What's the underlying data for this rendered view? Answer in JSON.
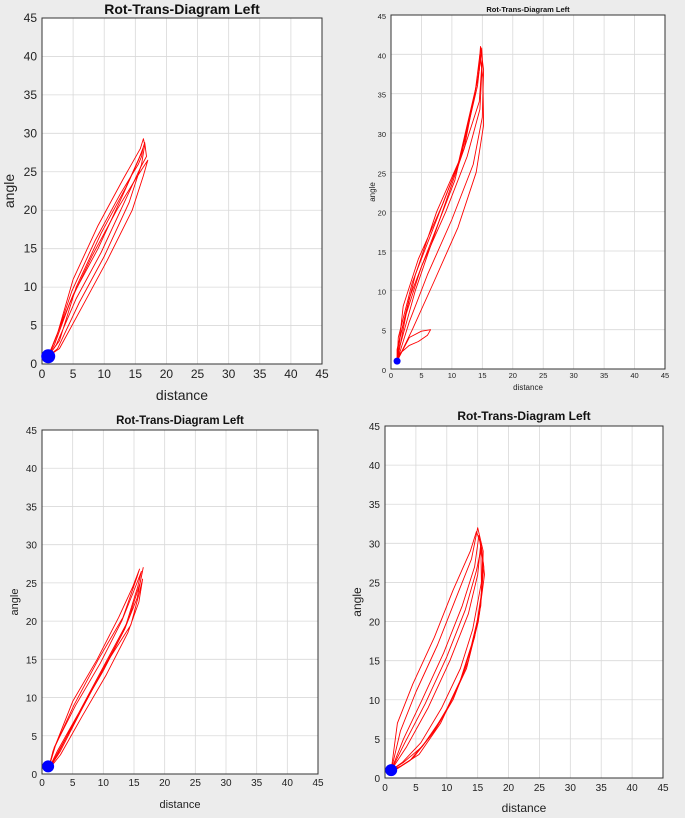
{
  "chart_data": [
    {
      "type": "line",
      "title": "Rot-Trans-Diagram Left",
      "xlabel": "distance",
      "ylabel": "angle",
      "xlim": [
        0,
        45
      ],
      "ylim": [
        0,
        45
      ],
      "xticks": [
        0,
        5,
        10,
        15,
        20,
        25,
        30,
        35,
        40,
        45
      ],
      "yticks": [
        0,
        5,
        10,
        15,
        20,
        25,
        30,
        35,
        40,
        45
      ],
      "grid": true,
      "series": [
        {
          "color": "#ff0000",
          "loops": [
            {
              "x": [
                1,
                2.5,
                6,
                10,
                14,
                16,
                16.5,
                16.3,
                15.8,
                13,
                9,
                5,
                2.5,
                1
              ],
              "y": [
                1,
                2,
                8,
                14,
                21,
                26,
                28.5,
                29.3,
                28,
                24,
                18,
                11,
                4,
                1
              ]
            },
            {
              "x": [
                1,
                2.3,
                5.5,
                9.5,
                13.5,
                15.8,
                16.8,
                16.5,
                16,
                13.5,
                9.5,
                5.5,
                2.8,
                1
              ],
              "y": [
                1,
                2.5,
                8.5,
                14.5,
                21.5,
                25.5,
                27,
                28.8,
                27.5,
                23,
                17,
                10,
                3,
                1
              ]
            },
            {
              "x": [
                1,
                2.8,
                6.5,
                10.5,
                14.5,
                16.3,
                17,
                16.2,
                15,
                12,
                8,
                4.5,
                2,
                1
              ],
              "y": [
                1,
                2,
                7.5,
                13.5,
                20,
                24.5,
                26.5,
                25.5,
                24,
                20,
                14,
                8,
                2.5,
                1
              ]
            },
            {
              "x": [
                1,
                2,
                5,
                9,
                13,
                15.5,
                16.2,
                16,
                15.5,
                12.5,
                8.5,
                4.8,
                2.3,
                1
              ],
              "y": [
                1,
                3,
                9,
                15,
                22,
                26.5,
                28,
                27,
                26,
                22,
                16,
                9.5,
                3.5,
                1
              ]
            }
          ]
        }
      ],
      "marker": {
        "x": 1,
        "y": 1,
        "color": "#0000ff"
      }
    },
    {
      "type": "line",
      "title": "Rot-Trans-Diagram Left",
      "xlabel": "distance",
      "ylabel": "angle",
      "xlim": [
        0,
        45
      ],
      "ylim": [
        0,
        45
      ],
      "xticks": [
        0,
        5,
        10,
        15,
        20,
        25,
        30,
        35,
        40,
        45
      ],
      "yticks": [
        0,
        5,
        10,
        15,
        20,
        25,
        30,
        35,
        40,
        45
      ],
      "grid": true,
      "series": [
        {
          "color": "#ff0000",
          "loops": [
            {
              "x": [
                1,
                3,
                6,
                10,
                13.5,
                15,
                15.2,
                14.8,
                14.5,
                12,
                8,
                4,
                1.5,
                1
              ],
              "y": [
                1,
                6,
                12,
                19,
                26,
                32,
                38,
                40.5,
                38,
                28,
                19,
                10,
                3,
                1
              ]
            },
            {
              "x": [
                1,
                2.5,
                5,
                9,
                12.5,
                14.6,
                15,
                14.7,
                14.3,
                11,
                7,
                3.5,
                1.2,
                1
              ],
              "y": [
                1,
                7,
                13,
                20,
                27,
                33,
                39,
                41,
                37,
                26,
                18,
                11,
                4,
                1
              ]
            },
            {
              "x": [
                1,
                3.5,
                7,
                11,
                14,
                15.2,
                15.1,
                14.6,
                13.8,
                10.5,
                6.5,
                3,
                1,
                1
              ],
              "y": [
                1,
                5,
                11,
                18,
                25,
                31,
                37,
                40,
                35,
                24,
                16,
                9,
                2.5,
                1
              ]
            },
            {
              "x": [
                1,
                2,
                4.5,
                8.5,
                12,
                14.5,
                15,
                14.9,
                14.2,
                11.5,
                7.5,
                4,
                1.5,
                1
              ],
              "y": [
                1,
                8,
                14,
                21,
                28,
                34,
                39.5,
                40.8,
                36,
                27,
                20,
                12,
                4,
                1
              ]
            },
            {
              "x": [
                1,
                3,
                5,
                6.5,
                6,
                4.5,
                3,
                1.5,
                1
              ],
              "y": [
                1,
                4,
                4.8,
                5,
                4.3,
                3.5,
                3,
                2,
                1
              ]
            }
          ]
        }
      ],
      "marker": {
        "x": 1,
        "y": 1,
        "color": "#0000ff"
      }
    },
    {
      "type": "line",
      "title": "Rot-Trans-Diagram Left",
      "xlabel": "distance",
      "ylabel": "angle",
      "xlim": [
        0,
        45
      ],
      "ylim": [
        0,
        45
      ],
      "xticks": [
        0,
        5,
        10,
        15,
        20,
        25,
        30,
        35,
        40,
        45
      ],
      "yticks": [
        0,
        5,
        10,
        15,
        20,
        25,
        30,
        35,
        40,
        45
      ],
      "grid": true,
      "series": [
        {
          "color": "#ff0000",
          "loops": [
            {
              "x": [
                1,
                2.5,
                6,
                10,
                13.5,
                15.5,
                16.5,
                16,
                14,
                10,
                6,
                2.5,
                1
              ],
              "y": [
                0.5,
                3,
                8,
                13.5,
                19,
                23,
                27,
                25,
                20,
                14,
                8,
                2.5,
                0.5
              ]
            },
            {
              "x": [
                1,
                2,
                5.5,
                9.5,
                13,
                15,
                16.2,
                15.6,
                13.5,
                9.5,
                5.5,
                2,
                1
              ],
              "y": [
                0.5,
                3.5,
                9,
                14.5,
                20,
                24,
                26.5,
                24.5,
                19,
                13,
                7,
                2,
                0.5
              ]
            },
            {
              "x": [
                1,
                3,
                6.5,
                10.5,
                14,
                15.8,
                16.4,
                15.8,
                14.5,
                10.5,
                6.5,
                3,
                1
              ],
              "y": [
                0.5,
                2.5,
                7.5,
                13,
                18.5,
                22.5,
                25.5,
                23.5,
                19.5,
                14.5,
                8.5,
                3,
                0.5
              ]
            },
            {
              "x": [
                1,
                2.3,
                5,
                9,
                12.5,
                14.8,
                15.9,
                15.5,
                13.2,
                9.2,
                5.2,
                1.8,
                1
              ],
              "y": [
                0.5,
                4,
                9.5,
                15,
                20.5,
                24.5,
                26.8,
                25.8,
                20.5,
                15,
                9,
                3,
                0.5
              ]
            }
          ]
        }
      ],
      "marker": {
        "x": 1,
        "y": 1,
        "color": "#0000ff"
      }
    },
    {
      "type": "line",
      "title": "Rot-Trans-Diagram Left",
      "xlabel": "distance",
      "ylabel": "angle",
      "xlim": [
        0,
        45
      ],
      "ylim": [
        0,
        45
      ],
      "xticks": [
        0,
        5,
        10,
        15,
        20,
        25,
        30,
        35,
        40,
        45
      ],
      "yticks": [
        0,
        5,
        10,
        15,
        20,
        25,
        30,
        35,
        40,
        45
      ],
      "grid": true,
      "series": [
        {
          "color": "#ff0000",
          "loops": [
            {
              "x": [
                1,
                3,
                6,
                9.5,
                12.5,
                14.5,
                15.2,
                15.8,
                15.5,
                14,
                12,
                9,
                5.5,
                2.5,
                1
              ],
              "y": [
                1,
                5,
                10,
                16,
                22,
                27,
                31,
                28,
                22,
                17,
                12,
                7,
                3,
                1.5,
                1
              ]
            },
            {
              "x": [
                1,
                2.5,
                5,
                8.5,
                11.5,
                14,
                15,
                15.9,
                15.7,
                14.5,
                12.5,
                9.5,
                6,
                3,
                1
              ],
              "y": [
                1,
                6,
                11,
                17,
                23,
                28,
                32,
                29,
                24,
                18,
                13,
                8,
                4,
                2,
                1
              ]
            },
            {
              "x": [
                1,
                3.5,
                7,
                10.5,
                13.5,
                15,
                15.5,
                16,
                15.3,
                13.5,
                11,
                8,
                4.5,
                2,
                1
              ],
              "y": [
                1,
                4,
                9,
                15,
                21,
                26,
                30,
                27,
                21,
                15,
                10,
                6,
                2.5,
                1.2,
                1
              ]
            },
            {
              "x": [
                1,
                2,
                4.5,
                8,
                11,
                13.8,
                14.8,
                15.5,
                15.6,
                14.2,
                12.2,
                9.2,
                5.8,
                2.8,
                1
              ],
              "y": [
                1,
                7,
                12,
                18,
                24,
                29,
                31.5,
                30,
                25,
                19,
                14,
                9,
                4.5,
                2,
                1
              ]
            },
            {
              "x": [
                1,
                3.2,
                6.5,
                10,
                13,
                14.8,
                15.6,
                16.1,
                15.1,
                13.2,
                10.5,
                7.5,
                4,
                1.8,
                1
              ],
              "y": [
                1,
                4.5,
                9.5,
                15.5,
                21.5,
                26.5,
                29.5,
                26,
                20,
                14,
                9.5,
                5.5,
                2.2,
                1.1,
                1
              ]
            }
          ]
        }
      ],
      "marker": {
        "x": 1,
        "y": 1,
        "color": "#0000ff"
      }
    }
  ]
}
